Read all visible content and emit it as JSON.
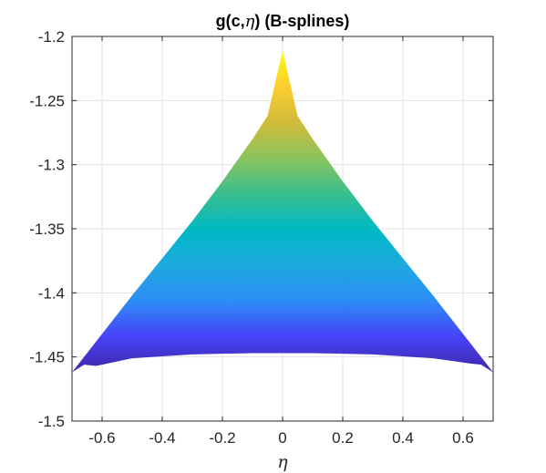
{
  "chart_data": {
    "type": "area",
    "title_prefix": "g(c,",
    "title_symbol": "η",
    "title_suffix": ") (B-splines)",
    "xlabel": "η",
    "ylabel": "",
    "xlim": [
      -0.7,
      0.7
    ],
    "ylim": [
      -1.5,
      -1.2
    ],
    "xticks": [
      -0.6,
      -0.4,
      -0.2,
      0,
      0.2,
      0.4,
      0.6
    ],
    "xtick_labels": [
      "-0.6",
      "-0.4",
      "-0.2",
      "0",
      "0.2",
      "0.4",
      "0.6"
    ],
    "yticks": [
      -1.2,
      -1.25,
      -1.3,
      -1.35,
      -1.4,
      -1.45,
      -1.5
    ],
    "ytick_labels": [
      "-1.2",
      "-1.25",
      "-1.3",
      "-1.35",
      "-1.4",
      "-1.45",
      "-1.5"
    ],
    "grid": true,
    "colormap": [
      "#3e26a8",
      "#4743f8",
      "#2d8cf5",
      "#1caadf",
      "#00b9c3",
      "#3bbe8f",
      "#8cc35c",
      "#d2bb3a",
      "#fcce2e",
      "#f9fb0e"
    ],
    "surface": {
      "upper_boundary": [
        {
          "x": -0.7,
          "y": -1.462
        },
        {
          "x": -0.6,
          "y": -1.432
        },
        {
          "x": -0.5,
          "y": -1.402
        },
        {
          "x": -0.4,
          "y": -1.373
        },
        {
          "x": -0.3,
          "y": -1.344
        },
        {
          "x": -0.2,
          "y": -1.313
        },
        {
          "x": -0.1,
          "y": -1.28
        },
        {
          "x": -0.05,
          "y": -1.262
        },
        {
          "x": 0,
          "y": -1.211
        },
        {
          "x": 0.05,
          "y": -1.262
        },
        {
          "x": 0.1,
          "y": -1.28
        },
        {
          "x": 0.2,
          "y": -1.313
        },
        {
          "x": 0.3,
          "y": -1.344
        },
        {
          "x": 0.4,
          "y": -1.373
        },
        {
          "x": 0.5,
          "y": -1.402
        },
        {
          "x": 0.6,
          "y": -1.432
        },
        {
          "x": 0.7,
          "y": -1.462
        }
      ],
      "lower_boundary": [
        {
          "x": 0.7,
          "y": -1.462
        },
        {
          "x": 0.66,
          "y": -1.456
        },
        {
          "x": 0.62,
          "y": -1.455
        },
        {
          "x": 0.5,
          "y": -1.451
        },
        {
          "x": 0.3,
          "y": -1.448
        },
        {
          "x": 0.1,
          "y": -1.447
        },
        {
          "x": 0,
          "y": -1.447
        },
        {
          "x": -0.1,
          "y": -1.447
        },
        {
          "x": -0.3,
          "y": -1.448
        },
        {
          "x": -0.5,
          "y": -1.451
        },
        {
          "x": -0.62,
          "y": -1.457
        },
        {
          "x": -0.66,
          "y": -1.456
        },
        {
          "x": -0.7,
          "y": -1.462
        }
      ]
    }
  }
}
